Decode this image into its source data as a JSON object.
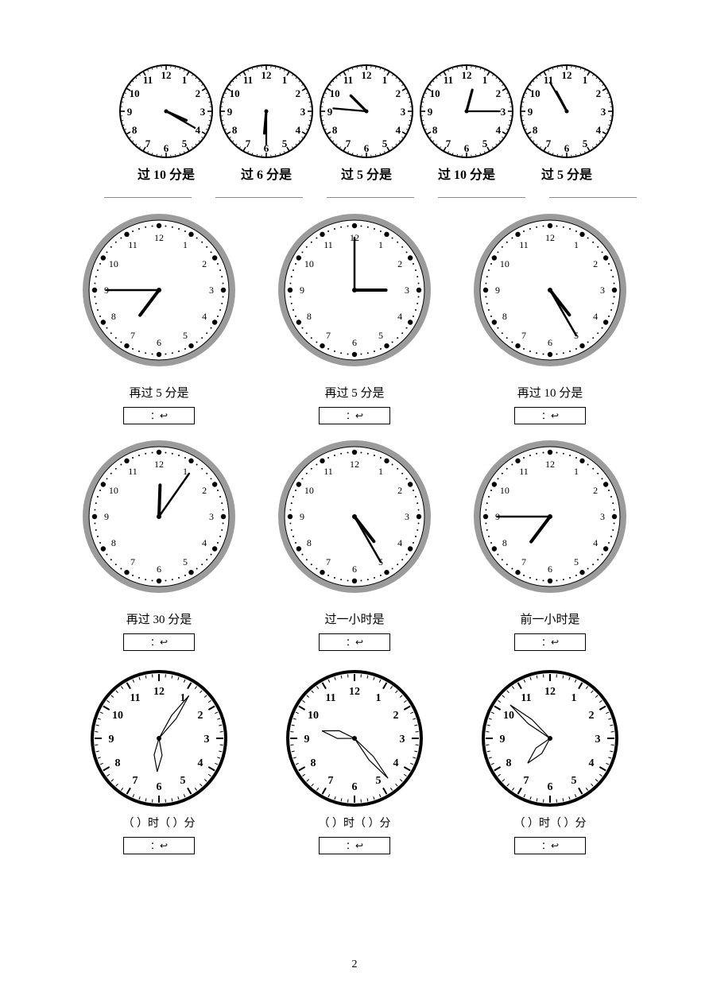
{
  "page_number": "2",
  "colors": {
    "bg": "#ffffff",
    "black": "#000000",
    "grey_rim": "#9b9b9b",
    "light_grey": "#cccccc"
  },
  "row1": {
    "clock_radius": 58,
    "clocks": [
      {
        "hour_angle": 114,
        "minute_angle": 120,
        "label": "过 10 分是"
      },
      {
        "hour_angle": 185,
        "minute_angle": 180,
        "label": "过 6 分是"
      },
      {
        "hour_angle": 315,
        "minute_angle": 275,
        "label": "过 5 分是"
      },
      {
        "hour_angle": 15,
        "minute_angle": 90,
        "label": "过 10 分是"
      },
      {
        "hour_angle": 332,
        "minute_angle": 330,
        "label": "过 5 分是"
      }
    ]
  },
  "grey_clocks": {
    "radius": 88,
    "rim_color": "#9b9b9b",
    "rim_width": 8,
    "rows": [
      [
        {
          "hour_angle": 217,
          "minute_angle": 270,
          "caption": "再过 5 分是",
          "box": "：↩"
        },
        {
          "hour_angle": 90,
          "minute_angle": 0,
          "caption": "再过 5 分是",
          "box": "：↩"
        },
        {
          "hour_angle": 142,
          "minute_angle": 150,
          "caption": "再过 10 分是",
          "box": "：↩"
        }
      ],
      [
        {
          "hour_angle": 2,
          "minute_angle": 35,
          "caption": "再过 30 分是",
          "box": "：↩"
        },
        {
          "hour_angle": 142,
          "minute_angle": 150,
          "caption": "过一小时是",
          "box": "：↩"
        },
        {
          "hour_angle": 217,
          "minute_angle": 270,
          "caption": "前一小时是",
          "box": "：↩"
        }
      ]
    ]
  },
  "row4": {
    "radius": 84,
    "clocks": [
      {
        "hour_angle": 183,
        "minute_angle": 35,
        "label": "（    ）时（    ）分",
        "box": "：↩"
      },
      {
        "hour_angle": 283,
        "minute_angle": 140,
        "label": "（    ）时（    ）分",
        "box": "：↩"
      },
      {
        "hour_angle": 222,
        "minute_angle": 310,
        "label": "（    ）时（    ）分",
        "box": "：↩"
      }
    ]
  }
}
